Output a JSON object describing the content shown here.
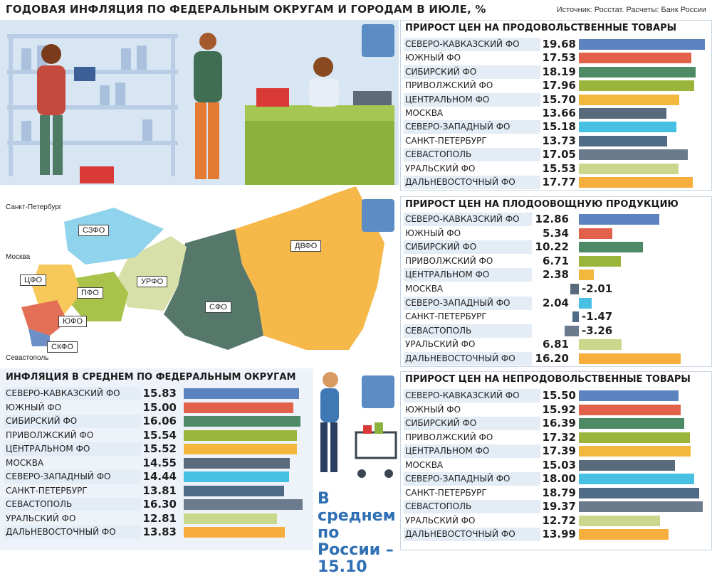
{
  "header": {
    "title": "ГОДОВАЯ ИНФЛЯЦИЯ ПО ФЕДЕРАЛЬНЫМ ОКРУГАМ И ГОРОДАМ В ИЮЛЕ, %",
    "source": "Источник: Росстат. Расчеты: Банк России"
  },
  "map": {
    "cities": {
      "spb": "Санкт-Петербург",
      "msk": "Москва",
      "sev": "Севастополь"
    },
    "districts": {
      "szfo": "СЗФО",
      "cfo": "ЦФО",
      "pfo": "ПФО",
      "urfo": "УРФО",
      "sfo": "СФО",
      "dvfo": "ДВФО",
      "yufo": "ЮФО",
      "skfo": "СКФО"
    }
  },
  "average": {
    "line1": "В среднем",
    "line2": "по России –",
    "value": "15.10"
  },
  "colors": {
    "skfo": "#5b83bf",
    "yufo": "#e2614b",
    "sfo": "#4f8a66",
    "pfo": "#9bb53b",
    "cfo": "#f2b73c",
    "msk": "#5a6a7d",
    "szfo": "#47c0e3",
    "spb": "#506b86",
    "sev": "#6b7a8c",
    "urfo": "#c9d88c",
    "dvfo": "#f7ae3d"
  },
  "chart_data": [
    {
      "type": "bar",
      "title": "ПРИРОСТ ЦЕН НА ПРОДОВОЛЬСТВЕННЫЕ ТОВАРЫ",
      "categories": [
        "СЕВЕРО-КАВКАЗСКИЙ ФО",
        "ЮЖНЫЙ ФО",
        "СИБИРСКИЙ ФО",
        "ПРИВОЛЖСКИЙ ФО",
        "ЦЕНТРАЛЬНОМ ФО",
        "МОСКВА",
        "СЕВЕРО-ЗАПАДНЫЙ ФО",
        "САНКТ-ПЕТЕРБУРГ",
        "СЕВАСТОПОЛЬ",
        "УРАЛЬСКИЙ ФО",
        "ДАЛЬНЕВОСТОЧНЫЙ ФО"
      ],
      "values": [
        19.68,
        17.53,
        18.19,
        17.96,
        15.7,
        13.66,
        15.18,
        13.73,
        17.05,
        15.53,
        17.77
      ],
      "labels": [
        "19.68",
        "17.53",
        "18.19",
        "17.96",
        "15.70",
        "13.66",
        "15.18",
        "13.73",
        "17.05",
        "15.53",
        "17.77"
      ],
      "xlim": [
        0,
        20
      ]
    },
    {
      "type": "bar",
      "title": "ПРИРОСТ ЦЕН НА ПЛОДООВОЩНУЮ ПРОДУКЦИЮ",
      "categories": [
        "СЕВЕРО-КАВКАЗСКИЙ ФО",
        "ЮЖНЫЙ ФО",
        "СИБИРСКИЙ ФО",
        "ПРИВОЛЖСКИЙ ФО",
        "ЦЕНТРАЛЬНОМ ФО",
        "МОСКВА",
        "СЕВЕРО-ЗАПАДНЫЙ ФО",
        "САНКТ-ПЕТЕРБУРГ",
        "СЕВАСТОПОЛЬ",
        "УРАЛЬСКИЙ ФО",
        "ДАЛЬНЕВОСТОЧНЫЙ ФО"
      ],
      "values": [
        12.86,
        5.34,
        10.22,
        6.71,
        2.38,
        -2.01,
        2.04,
        -1.47,
        -3.26,
        6.81,
        16.2
      ],
      "labels": [
        "12.86",
        "5.34",
        "10.22",
        "6.71",
        "2.38",
        "-2.01",
        "2.04",
        "-1.47",
        "-3.26",
        "6.81",
        "16.20"
      ],
      "xlim": [
        -4,
        17
      ]
    },
    {
      "type": "bar",
      "title": "ИНФЛЯЦИЯ В СРЕДНЕМ ПО ФЕДЕРАЛЬНЫМ ОКРУГАМ",
      "categories": [
        "СЕВЕРО-КАВКАЗСКИЙ ФО",
        "ЮЖНЫЙ ФО",
        "СИБИРСКИЙ ФО",
        "ПРИВОЛЖСКИЙ ФО",
        "ЦЕНТРАЛЬНОМ ФО",
        "МОСКВА",
        "СЕВЕРО-ЗАПАДНЫЙ ФО",
        "САНКТ-ПЕТЕРБУРГ",
        "СЕВАСТОПОЛЬ",
        "УРАЛЬСКИЙ ФО",
        "ДАЛЬНЕВОСТОЧНЫЙ ФО"
      ],
      "values": [
        15.83,
        15.0,
        16.06,
        15.54,
        15.52,
        14.55,
        14.44,
        13.81,
        16.3,
        12.81,
        13.83
      ],
      "labels": [
        "15.83",
        "15.00",
        "16.06",
        "15.54",
        "15.52",
        "14.55",
        "14.44",
        "13.81",
        "16.30",
        "12.81",
        "13.83"
      ],
      "xlim": [
        0,
        17
      ]
    },
    {
      "type": "bar",
      "title": "ПРИРОСТ ЦЕН НА НЕПРОДОВОЛЬСТВЕННЫЕ ТОВАРЫ",
      "categories": [
        "СЕВЕРО-КАВКАЗСКИЙ ФО",
        "ЮЖНЫЙ ФО",
        "СИБИРСКИЙ ФО",
        "ПРИВОЛЖСКИЙ ФО",
        "ЦЕНТРАЛЬНОМ ФО",
        "МОСКВА",
        "СЕВЕРО-ЗАПАДНЫЙ ФО",
        "САНКТ-ПЕТЕРБУРГ",
        "СЕВАСТОПОЛЬ",
        "УРАЛЬСКИЙ ФО",
        "ДАЛЬНЕВОСТОЧНЫЙ ФО"
      ],
      "values": [
        15.5,
        15.92,
        16.39,
        17.32,
        17.39,
        15.03,
        18.0,
        18.79,
        19.37,
        12.72,
        13.99
      ],
      "labels": [
        "15.50",
        "15.92",
        "16.39",
        "17.32",
        "17.39",
        "15.03",
        "18.00",
        "18.79",
        "19.37",
        "12.72",
        "13.99"
      ],
      "xlim": [
        0,
        20
      ]
    }
  ]
}
